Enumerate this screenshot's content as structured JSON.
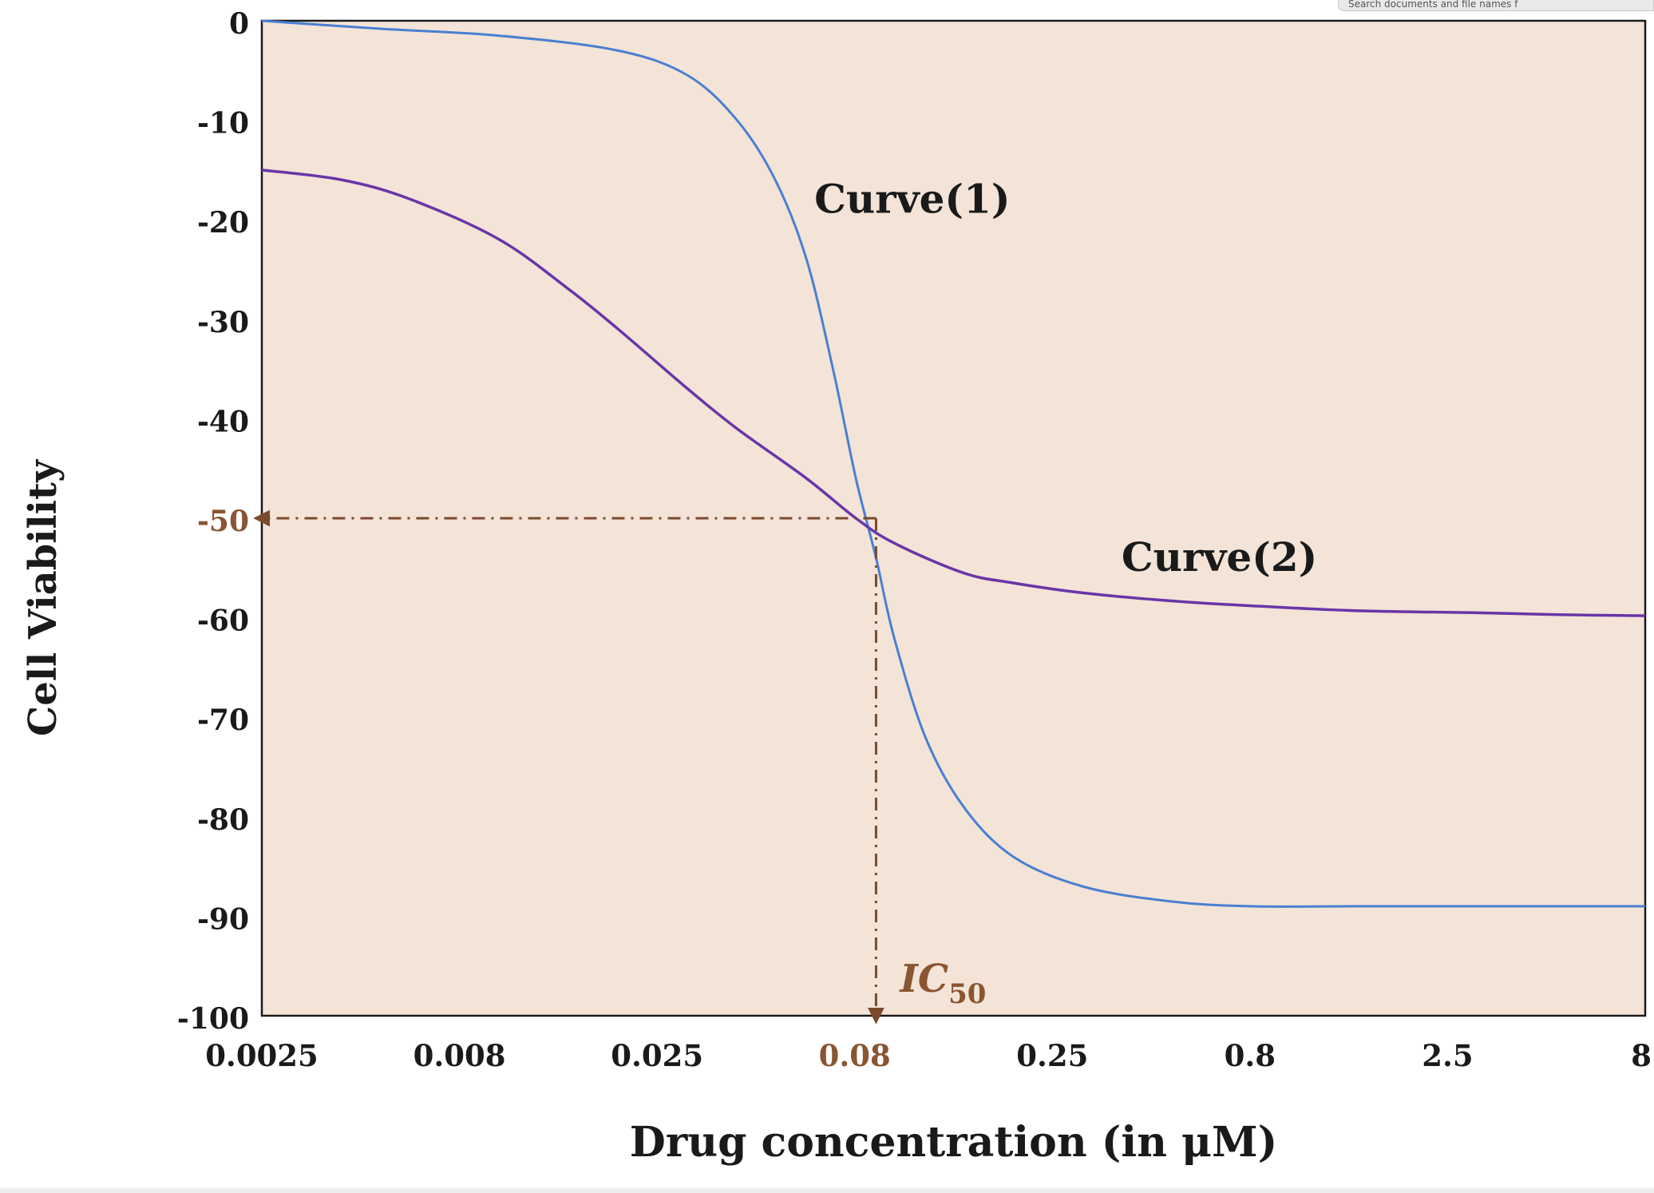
{
  "search_hint": "Search documents and file names f",
  "colors": {
    "plot_background": "#f3e4d7",
    "curve1": "#4a7fd2",
    "curve2": "#6a35a8",
    "guide": "#7b4a2c",
    "axis_text": "#1a1a1a",
    "highlight_text": "#8a5532"
  },
  "chart_data": {
    "type": "line",
    "xscale": "log",
    "xlabel": "Drug concentration (in μM)",
    "ylabel": "Cell Viability",
    "xlim": [
      0.0025,
      8
    ],
    "ylim": [
      -100,
      0
    ],
    "grid": false,
    "x_ticks": [
      "0.0025",
      "0.008",
      "0.025",
      "0.08",
      "0.25",
      "0.8",
      "2.5",
      "8"
    ],
    "y_ticks": [
      "0",
      "-10",
      "-20",
      "-30",
      "-40",
      "-50",
      "-60",
      "-70",
      "-80",
      "-90",
      "-100"
    ],
    "highlighted_x_tick": "0.08",
    "highlighted_y_tick": "-50",
    "series": [
      {
        "name": "Curve(1)",
        "x": [
          0.0025,
          0.005,
          0.01,
          0.02,
          0.03,
          0.04,
          0.05,
          0.06,
          0.07,
          0.08,
          0.09,
          0.1,
          0.12,
          0.15,
          0.2,
          0.3,
          0.5,
          0.8,
          1.5,
          3,
          8
        ],
        "y": [
          0,
          -0.8,
          -1.5,
          -3,
          -5.5,
          -10,
          -16,
          -24,
          -35,
          -46,
          -54,
          -62,
          -72,
          -79,
          -84,
          -87,
          -88.5,
          -89,
          -89,
          -89,
          -89
        ]
      },
      {
        "name": "Curve(2)",
        "x": [
          0.0025,
          0.004,
          0.006,
          0.01,
          0.015,
          0.02,
          0.03,
          0.04,
          0.06,
          0.08,
          0.1,
          0.15,
          0.2,
          0.3,
          0.5,
          0.8,
          1.5,
          3,
          5,
          8
        ],
        "y": [
          -15,
          -16,
          -18,
          -22,
          -27,
          -31,
          -37,
          -41,
          -46,
          -50,
          -52.5,
          -55.5,
          -56.5,
          -57.5,
          -58.3,
          -58.8,
          -59.3,
          -59.5,
          -59.7,
          -59.8
        ]
      }
    ],
    "annotations": [
      {
        "text": "Curve(1)",
        "x": 0.1,
        "y": -18
      },
      {
        "text": "Curve(2)",
        "x": 0.6,
        "y": -54
      }
    ],
    "ic50": {
      "label": "IC",
      "subscript": "50",
      "x": 0.09,
      "y": -50
    }
  }
}
